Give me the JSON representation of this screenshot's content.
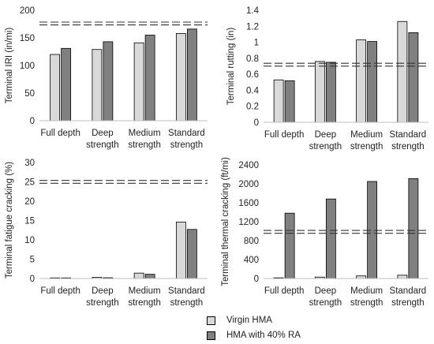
{
  "colors": {
    "virgin": "#d9d9d9",
    "ra": "#808080",
    "outline": "#000000",
    "reference_line": "#333333",
    "axis": "#bfbfbf"
  },
  "legend": {
    "virgin_label": "Virgin HMA",
    "ra_label": "HMA with 40% RA"
  },
  "chart_data": [
    {
      "type": "bar",
      "ylabel": "Terminal IRI (in/mi)",
      "categories": [
        [
          "Full depth"
        ],
        [
          "Deep",
          "strength"
        ],
        [
          "Medium",
          "strength"
        ],
        [
          "Standard",
          "strength"
        ]
      ],
      "ylim": [
        0,
        200
      ],
      "yticks": [
        "0",
        "50",
        "100",
        "150",
        "200"
      ],
      "threshold": 176,
      "series": [
        {
          "name": "Virgin HMA",
          "values": [
            120,
            129,
            141,
            158
          ]
        },
        {
          "name": "HMA with 40% RA",
          "values": [
            131,
            143,
            155,
            166
          ]
        }
      ]
    },
    {
      "type": "bar",
      "ylabel": "Terminal rutting (in)",
      "categories": [
        [
          "Full depth"
        ],
        [
          "Deep",
          "strength"
        ],
        [
          "Medium",
          "strength"
        ],
        [
          "Standard",
          "strength"
        ]
      ],
      "ylim": [
        0,
        1.4
      ],
      "yticks": [
        "0",
        "0.2",
        "0.4",
        "0.6",
        "0.8",
        "1",
        "1.2",
        "1.4"
      ],
      "threshold": 0.72,
      "series": [
        {
          "name": "Virgin HMA",
          "values": [
            0.53,
            0.76,
            1.03,
            1.26
          ]
        },
        {
          "name": "HMA with 40% RA",
          "values": [
            0.52,
            0.75,
            1.01,
            1.12
          ]
        }
      ]
    },
    {
      "type": "bar",
      "ylabel": "Terminal fatigue cracking (%)",
      "categories": [
        [
          "Full depth"
        ],
        [
          "Deep",
          "strength"
        ],
        [
          "Medium",
          "strength"
        ],
        [
          "Standard",
          "strength"
        ]
      ],
      "ylim": [
        0,
        30
      ],
      "yticks": [
        "0",
        "5",
        "10",
        "15",
        "20",
        "25",
        "30"
      ],
      "threshold": 25,
      "series": [
        {
          "name": "Virgin HMA",
          "values": [
            0.1,
            0.3,
            1.4,
            14.6
          ]
        },
        {
          "name": "HMA with 40% RA",
          "values": [
            0.1,
            0.2,
            1.1,
            12.7
          ]
        }
      ]
    },
    {
      "type": "bar",
      "ylabel": "Terminal thermal cracking (ft/mi)",
      "categories": [
        [
          "Full depth"
        ],
        [
          "Deep",
          "strength"
        ],
        [
          "Medium",
          "strength"
        ],
        [
          "Standard",
          "strength"
        ]
      ],
      "ylim": [
        0,
        2400
      ],
      "yticks": [
        "0",
        "400",
        "800",
        "1200",
        "1600",
        "2000",
        "2400"
      ],
      "threshold": 985,
      "series": [
        {
          "name": "Virgin HMA",
          "values": [
            15,
            30,
            55,
            70
          ]
        },
        {
          "name": "HMA with 40% RA",
          "values": [
            1380,
            1680,
            2050,
            2110
          ]
        }
      ]
    }
  ]
}
